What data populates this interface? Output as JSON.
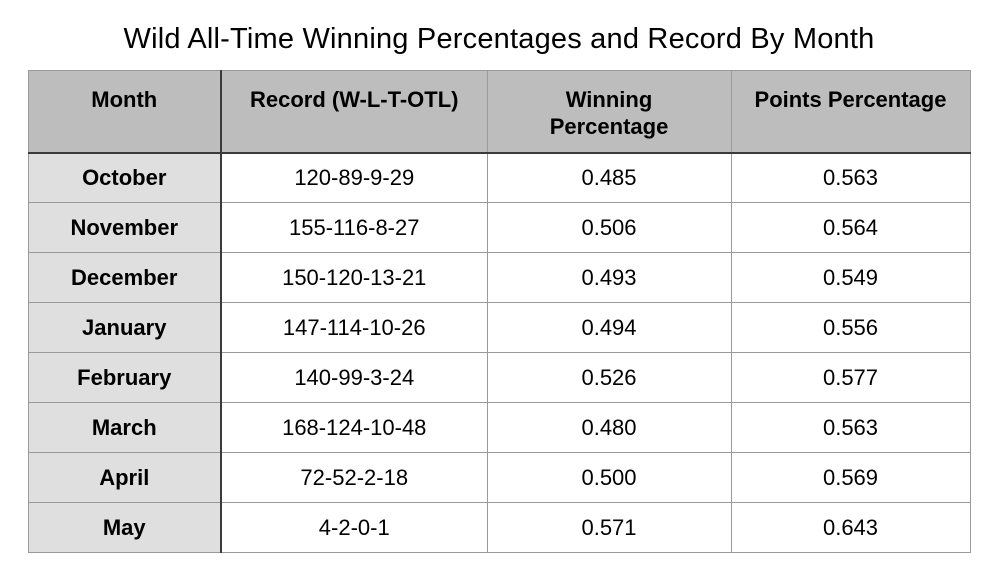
{
  "chart_data": {
    "type": "table",
    "title": "Wild All-Time Winning Percentages and Record By Month",
    "columns": [
      "Month",
      "Record (W-L-T-OTL)",
      "Winning Percentage",
      "Points Percentage"
    ],
    "rows": [
      [
        "October",
        "120-89-9-29",
        "0.485",
        "0.563"
      ],
      [
        "November",
        "155-116-8-27",
        "0.506",
        "0.564"
      ],
      [
        "December",
        "150-120-13-21",
        "0.493",
        "0.549"
      ],
      [
        "January",
        "147-114-10-26",
        "0.494",
        "0.556"
      ],
      [
        "February",
        "140-99-3-24",
        "0.526",
        "0.577"
      ],
      [
        "March",
        "168-124-10-48",
        "0.480",
        "0.563"
      ],
      [
        "April",
        "72-52-2-18",
        "0.500",
        "0.569"
      ],
      [
        "May",
        "4-2-0-1",
        "0.571",
        "0.643"
      ]
    ]
  },
  "colors": {
    "header_bg": "#bdbdbd",
    "month_column_bg": "#dfdfdf",
    "grid_line": "#9a9a9a",
    "strong_line": "#3b3b3b",
    "text": "#000000",
    "background": "#ffffff"
  }
}
